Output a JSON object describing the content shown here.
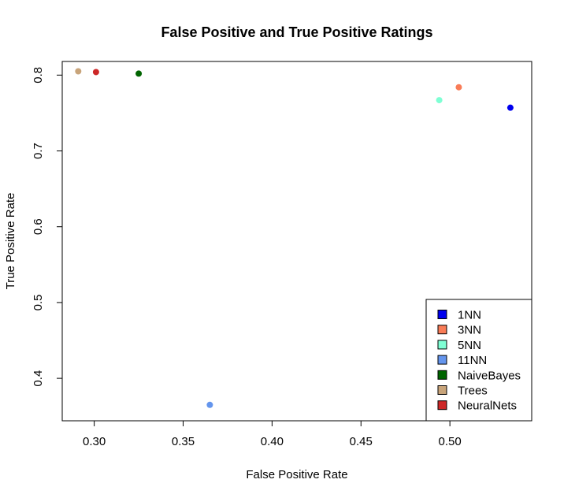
{
  "chart_data": {
    "type": "scatter",
    "title": "False Positive and True Positive Ratings",
    "xlabel": "False Positive Rate",
    "ylabel": "True Positive Rate",
    "xlim": [
      0.282,
      0.546
    ],
    "ylim": [
      0.344,
      0.818
    ],
    "x_ticks": [
      0.3,
      0.35,
      0.4,
      0.45,
      0.5
    ],
    "x_tick_labels": [
      "0.30",
      "0.35",
      "0.40",
      "0.45",
      "0.50"
    ],
    "y_ticks": [
      0.4,
      0.5,
      0.6,
      0.7,
      0.8
    ],
    "y_tick_labels": [
      "0.4",
      "0.5",
      "0.6",
      "0.7",
      "0.8"
    ],
    "grid": false,
    "legend_position": "bottom-right",
    "series": [
      {
        "name": "1NN",
        "color": "#0000ee",
        "x": 0.534,
        "y": 0.757
      },
      {
        "name": "3NN",
        "color": "#f97c57",
        "x": 0.505,
        "y": 0.784
      },
      {
        "name": "5NN",
        "color": "#7fffd4",
        "x": 0.494,
        "y": 0.767
      },
      {
        "name": "11NN",
        "color": "#6495ed",
        "x": 0.365,
        "y": 0.365
      },
      {
        "name": "NaiveBayes",
        "color": "#006400",
        "x": 0.325,
        "y": 0.802
      },
      {
        "name": "Trees",
        "color": "#c8a47a",
        "x": 0.291,
        "y": 0.805
      },
      {
        "name": "NeuralNets",
        "color": "#cd2828",
        "x": 0.301,
        "y": 0.804
      }
    ]
  }
}
